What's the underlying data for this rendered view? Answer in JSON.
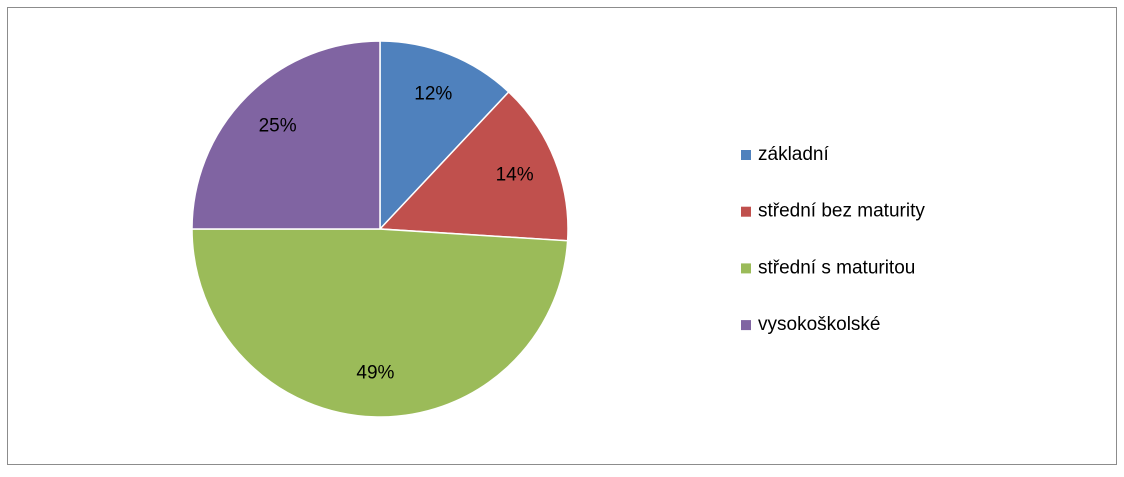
{
  "chart_data": {
    "type": "pie",
    "categories": [
      "základní",
      "střední bez maturity",
      "střední s maturitou",
      "vysokoškolské"
    ],
    "values": [
      12,
      14,
      49,
      25
    ],
    "value_labels": [
      "12%",
      "14%",
      "49%",
      "25%"
    ],
    "colors": [
      "#4f81bd",
      "#c0504d",
      "#9bbb59",
      "#8064a2"
    ],
    "legend": "right"
  }
}
